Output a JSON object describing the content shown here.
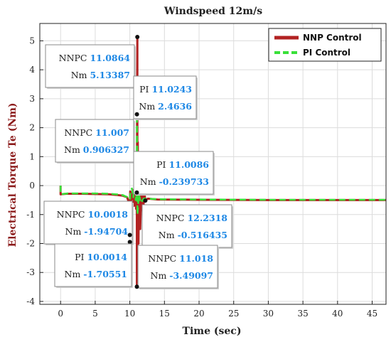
{
  "chart_data": {
    "type": "line",
    "title": "Windspeed 12m/s",
    "xlabel": "Time (sec)",
    "ylabel": "Electrical Torque Te (Nm)",
    "xlim": [
      -3,
      47
    ],
    "ylim": [
      -4.1,
      5.6
    ],
    "xticks": [
      0,
      5,
      10,
      15,
      20,
      25,
      30,
      35,
      40,
      45
    ],
    "yticks": [
      -4,
      -3,
      -2,
      -1,
      0,
      1,
      2,
      3,
      4,
      5
    ],
    "grid": true,
    "legend_position": "top-right",
    "series": [
      {
        "name": "NNP Control",
        "color": "#b22222",
        "style": "solid",
        "points": [
          [
            0,
            0
          ],
          [
            0,
            -0.3
          ],
          [
            1,
            -0.28
          ],
          [
            3,
            -0.28
          ],
          [
            5,
            -0.29
          ],
          [
            7,
            -0.3
          ],
          [
            8,
            -0.32
          ],
          [
            9,
            -0.35
          ],
          [
            9.6,
            -0.4
          ],
          [
            9.9,
            -0.6
          ],
          [
            10.0018,
            -1.94704
          ],
          [
            10.05,
            -0.2
          ],
          [
            10.2,
            -0.5
          ],
          [
            10.4,
            -0.15
          ],
          [
            10.6,
            -0.7
          ],
          [
            10.8,
            0.2
          ],
          [
            10.9,
            -0.8
          ],
          [
            11.007,
            0.906327
          ],
          [
            11.018,
            -3.49097
          ],
          [
            11.05,
            3.0
          ],
          [
            11.0864,
            5.13387
          ],
          [
            11.1,
            -2.5
          ],
          [
            11.15,
            1.5
          ],
          [
            11.25,
            -2.0
          ],
          [
            11.35,
            0.8
          ],
          [
            11.5,
            -1.5
          ],
          [
            11.7,
            0.3
          ],
          [
            11.9,
            -1.0
          ],
          [
            12.1,
            -0.2
          ],
          [
            12.2318,
            -0.516435
          ],
          [
            12.6,
            -0.45
          ],
          [
            14,
            -0.48
          ],
          [
            20,
            -0.49
          ],
          [
            30,
            -0.5
          ],
          [
            40,
            -0.5
          ],
          [
            47,
            -0.5
          ]
        ]
      },
      {
        "name": "PI Control",
        "color": "#39e039",
        "style": "dashed",
        "points": [
          [
            0,
            0
          ],
          [
            0,
            -0.3
          ],
          [
            1,
            -0.27
          ],
          [
            3,
            -0.27
          ],
          [
            5,
            -0.27
          ],
          [
            7,
            -0.28
          ],
          [
            8,
            -0.3
          ],
          [
            9,
            -0.33
          ],
          [
            9.6,
            -0.4
          ],
          [
            9.9,
            -0.8
          ],
          [
            10.0014,
            -1.70551
          ],
          [
            10.05,
            -0.3
          ],
          [
            10.3,
            -0.1
          ],
          [
            10.5,
            -0.4
          ],
          [
            10.7,
            0.1
          ],
          [
            10.85,
            -0.5
          ],
          [
            11.0086,
            -0.239733
          ],
          [
            11.0243,
            2.4636
          ],
          [
            11.1,
            -1.0
          ],
          [
            11.3,
            -0.3
          ],
          [
            11.6,
            -0.6
          ],
          [
            12,
            -0.45
          ],
          [
            14,
            -0.47
          ],
          [
            20,
            -0.48
          ],
          [
            30,
            -0.49
          ],
          [
            40,
            -0.49
          ],
          [
            47,
            -0.49
          ]
        ]
      }
    ],
    "annotations": [
      {
        "label": "NNPC",
        "x": "11.0864",
        "y": "5.13387",
        "px": 11.0864,
        "py": 5.13387
      },
      {
        "label": "PI",
        "x": "11.0243",
        "y": "2.4636",
        "px": 11.0243,
        "py": 2.4636
      },
      {
        "label": "NNPC",
        "x": "11.007",
        "y": "0.906327",
        "px": 11.007,
        "py": 0.906327
      },
      {
        "label": "PI",
        "x": "11.0086",
        "y": "-0.239733",
        "px": 11.0086,
        "py": -0.239733
      },
      {
        "label": "NNPC",
        "x": "10.0018",
        "y": "-1.94704",
        "px": 10.0018,
        "py": -1.94704
      },
      {
        "label": "NNPC",
        "x": "12.2318",
        "y": "-0.516435",
        "px": 12.2318,
        "py": -0.516435
      },
      {
        "label": "PI",
        "x": "10.0014",
        "y": "-1.70551",
        "px": 10.0014,
        "py": -1.70551
      },
      {
        "label": "NNPC",
        "x": "11.018",
        "y": "-3.49097",
        "px": 11.018,
        "py": -3.49097
      }
    ],
    "ann_ylabel": "Nm"
  }
}
